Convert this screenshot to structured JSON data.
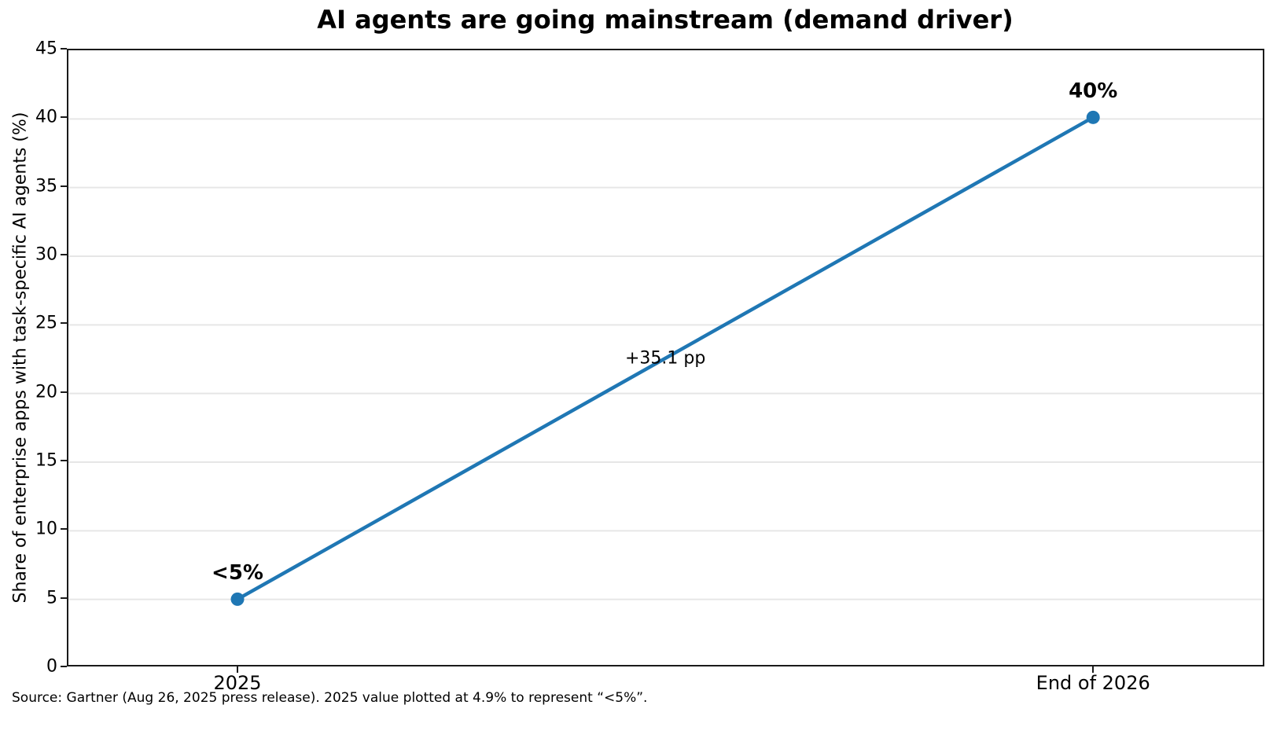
{
  "footnote": "Source: Gartner (Aug 26, 2025 press release). 2025 value plotted at 4.9% to represent “<5%”.",
  "chart_data": {
    "type": "line",
    "title": "AI agents are going mainstream (demand driver)",
    "categories": [
      "2025",
      "End of 2026"
    ],
    "values": [
      4.9,
      40
    ],
    "point_labels": [
      "<5%",
      "40%"
    ],
    "annotation": "+35.1 pp",
    "xlabel": "",
    "ylabel": "Share of enterprise apps with task-specific AI agents (%)",
    "ylim": [
      0,
      45
    ],
    "yticks": [
      0,
      5,
      10,
      15,
      20,
      25,
      30,
      35,
      40,
      45
    ],
    "grid": "horizontal",
    "grid_color": "#e6e6e6",
    "legend": "none",
    "line_color": "#1f77b4",
    "marker": "circle",
    "spine_color": "#1a1a1a"
  }
}
